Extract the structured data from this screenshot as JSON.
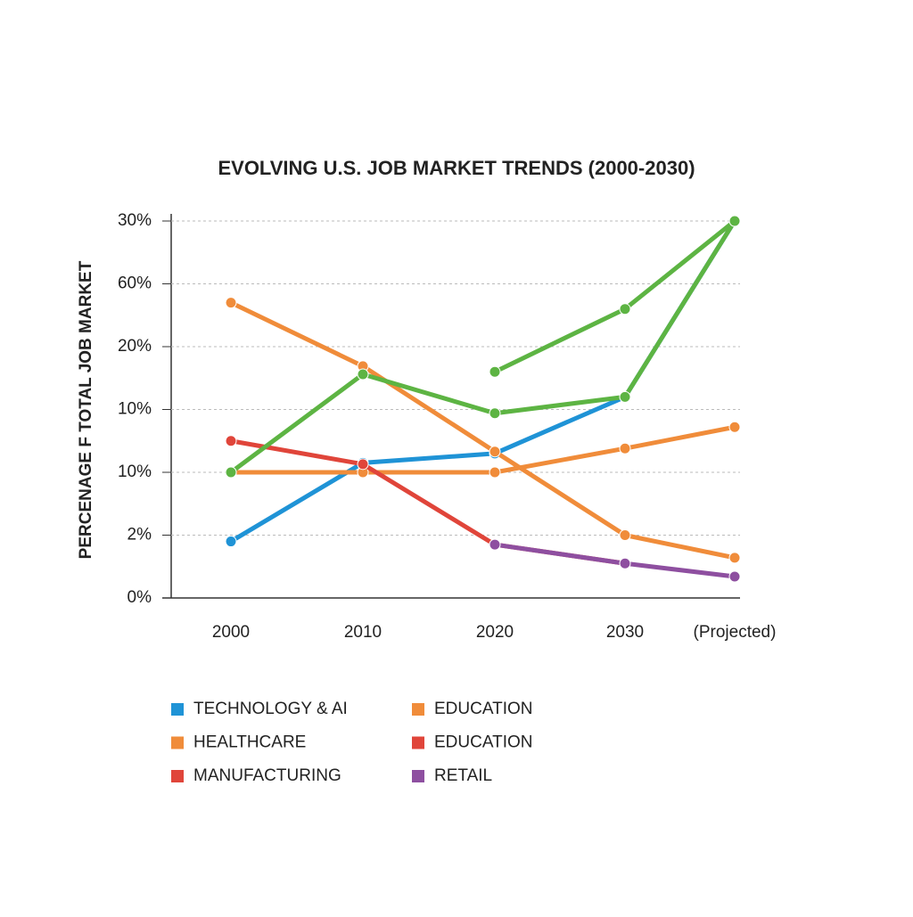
{
  "chart_data": {
    "type": "line",
    "title": "EVOLVING U.S. JOB MARKET TRENDS (2000-2030)",
    "y_label": "PERCENAGE F TOTAL JOB MARKET",
    "categories": [
      "2000",
      "2010",
      "2020",
      "2030",
      "(Projected)"
    ],
    "ylim": [
      0,
      6
    ],
    "yticks": [
      {
        "value": 0,
        "label": "0%"
      },
      {
        "value": 1,
        "label": "2%"
      },
      {
        "value": 2,
        "label": "10%"
      },
      {
        "value": 3,
        "label": "10%"
      },
      {
        "value": 4,
        "label": "20%"
      },
      {
        "value": 5,
        "label": "60%"
      },
      {
        "value": 6,
        "label": "30%"
      }
    ],
    "grid": true,
    "series": [
      {
        "name": "TECHNOLOGY & AI",
        "color": "#1f93d6",
        "values": [
          0.9,
          2.15,
          2.3,
          3.2,
          6.0
        ]
      },
      {
        "name": "HEALTHCARE",
        "color": "#f08c3a",
        "values": [
          2.0,
          2.0,
          2.0,
          2.38,
          2.72
        ]
      },
      {
        "name": "MANUFACTURING",
        "color": "#e0453a",
        "values": [
          2.5,
          2.13,
          0.85,
          0.55,
          null
        ]
      },
      {
        "name": "EDUCATION",
        "color": "#f08c3a",
        "values": [
          4.7,
          3.69,
          2.33,
          1.0,
          0.64
        ]
      },
      {
        "name": "EDUCATION",
        "color": "#e0453a",
        "values": [
          null,
          null,
          null,
          null,
          null
        ]
      },
      {
        "name": "RETAIL",
        "color": "#8e4fa0",
        "values": [
          null,
          null,
          0.85,
          0.55,
          0.34
        ]
      },
      {
        "color": "#5db443",
        "values": [
          2.0,
          3.56,
          2.94,
          3.2,
          6.0
        ]
      },
      {
        "color": "#5db443",
        "values": [
          null,
          null,
          3.6,
          4.6,
          6.0
        ]
      }
    ]
  }
}
